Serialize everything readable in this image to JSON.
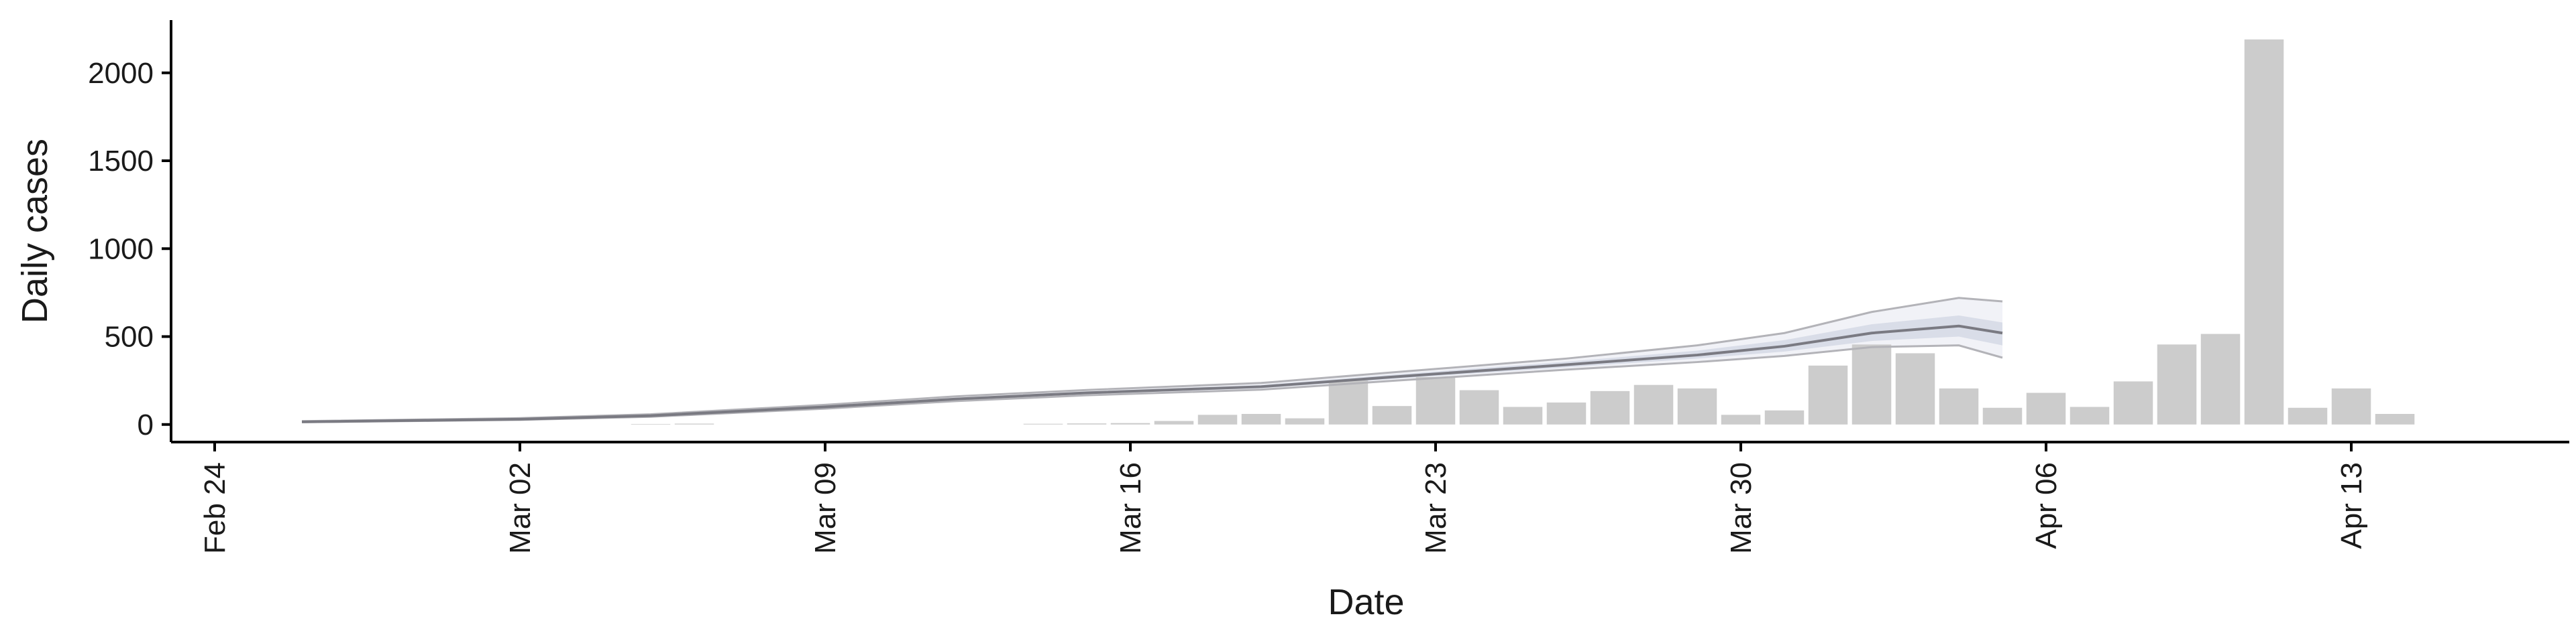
{
  "chart_data": {
    "type": "bar",
    "title": "",
    "xlabel": "Date",
    "ylabel": "Daily cases",
    "ylim": [
      -100,
      2300
    ],
    "yticks": [
      0,
      500,
      1000,
      1500,
      2000
    ],
    "x_range": [
      "2020-02-23",
      "2020-04-18"
    ],
    "xticks": [
      {
        "date": "2020-02-24",
        "label": "Feb 24"
      },
      {
        "date": "2020-03-02",
        "label": "Mar 02"
      },
      {
        "date": "2020-03-09",
        "label": "Mar 09"
      },
      {
        "date": "2020-03-16",
        "label": "Mar 16"
      },
      {
        "date": "2020-03-23",
        "label": "Mar 23"
      },
      {
        "date": "2020-03-30",
        "label": "Mar 30"
      },
      {
        "date": "2020-04-06",
        "label": "Apr 06"
      },
      {
        "date": "2020-04-13",
        "label": "Apr 13"
      }
    ],
    "grid": false,
    "legend": "none",
    "colors": {
      "bars": "#cccccc",
      "line": "#7a7a82",
      "band_outer": "#e6e8f0",
      "band_inner": "#c9cede",
      "band_edge": "#b3b3b8"
    },
    "bars": [
      {
        "date": "2020-03-05",
        "value": 3
      },
      {
        "date": "2020-03-06",
        "value": 5
      },
      {
        "date": "2020-03-14",
        "value": 4
      },
      {
        "date": "2020-03-15",
        "value": 6
      },
      {
        "date": "2020-03-16",
        "value": 8
      },
      {
        "date": "2020-03-17",
        "value": 20
      },
      {
        "date": "2020-03-18",
        "value": 55
      },
      {
        "date": "2020-03-19",
        "value": 60
      },
      {
        "date": "2020-03-20",
        "value": 35
      },
      {
        "date": "2020-03-21",
        "value": 250
      },
      {
        "date": "2020-03-22",
        "value": 105
      },
      {
        "date": "2020-03-23",
        "value": 270
      },
      {
        "date": "2020-03-24",
        "value": 195
      },
      {
        "date": "2020-03-25",
        "value": 100
      },
      {
        "date": "2020-03-26",
        "value": 125
      },
      {
        "date": "2020-03-27",
        "value": 190
      },
      {
        "date": "2020-03-28",
        "value": 225
      },
      {
        "date": "2020-03-29",
        "value": 205
      },
      {
        "date": "2020-03-30",
        "value": 55
      },
      {
        "date": "2020-03-31",
        "value": 80
      },
      {
        "date": "2020-04-01",
        "value": 335
      },
      {
        "date": "2020-04-02",
        "value": 455
      },
      {
        "date": "2020-04-03",
        "value": 405
      },
      {
        "date": "2020-04-04",
        "value": 205
      },
      {
        "date": "2020-04-05",
        "value": 95
      },
      {
        "date": "2020-04-06",
        "value": 180
      },
      {
        "date": "2020-04-07",
        "value": 100
      },
      {
        "date": "2020-04-08",
        "value": 245
      },
      {
        "date": "2020-04-09",
        "value": 455
      },
      {
        "date": "2020-04-10",
        "value": 515
      },
      {
        "date": "2020-04-11",
        "value": 2190
      },
      {
        "date": "2020-04-12",
        "value": 95
      },
      {
        "date": "2020-04-13",
        "value": 205
      },
      {
        "date": "2020-04-14",
        "value": 60
      }
    ],
    "estimate": [
      {
        "date": "2020-02-26",
        "median": 15,
        "inner_low": 14,
        "inner_high": 17,
        "outer_low": 13,
        "outer_high": 19
      },
      {
        "date": "2020-03-02",
        "median": 30,
        "inner_low": 28,
        "inner_high": 33,
        "outer_low": 26,
        "outer_high": 36
      },
      {
        "date": "2020-03-05",
        "median": 50,
        "inner_low": 47,
        "inner_high": 54,
        "outer_low": 44,
        "outer_high": 58
      },
      {
        "date": "2020-03-09",
        "median": 100,
        "inner_low": 95,
        "inner_high": 106,
        "outer_low": 90,
        "outer_high": 112
      },
      {
        "date": "2020-03-12",
        "median": 145,
        "inner_low": 139,
        "inner_high": 152,
        "outer_low": 133,
        "outer_high": 160
      },
      {
        "date": "2020-03-15",
        "median": 180,
        "inner_low": 173,
        "inner_high": 188,
        "outer_low": 166,
        "outer_high": 196
      },
      {
        "date": "2020-03-19",
        "median": 215,
        "inner_low": 206,
        "inner_high": 225,
        "outer_low": 198,
        "outer_high": 236
      },
      {
        "date": "2020-03-22",
        "median": 270,
        "inner_low": 259,
        "inner_high": 283,
        "outer_low": 248,
        "outer_high": 296
      },
      {
        "date": "2020-03-26",
        "median": 340,
        "inner_low": 325,
        "inner_high": 357,
        "outer_low": 312,
        "outer_high": 375
      },
      {
        "date": "2020-03-29",
        "median": 395,
        "inner_low": 375,
        "inner_high": 420,
        "outer_low": 355,
        "outer_high": 450
      },
      {
        "date": "2020-03-31",
        "median": 445,
        "inner_low": 415,
        "inner_high": 480,
        "outer_low": 390,
        "outer_high": 520
      },
      {
        "date": "2020-04-02",
        "median": 520,
        "inner_low": 475,
        "inner_high": 570,
        "outer_low": 440,
        "outer_high": 640
      },
      {
        "date": "2020-04-04",
        "median": 560,
        "inner_low": 500,
        "inner_high": 620,
        "outer_low": 450,
        "outer_high": 720
      },
      {
        "date": "2020-04-05",
        "median": 520,
        "inner_low": 450,
        "inner_high": 580,
        "outer_low": 380,
        "outer_high": 700
      }
    ]
  }
}
